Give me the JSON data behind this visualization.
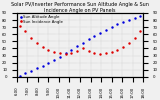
{
  "title": "Solar PV/Inverter Performance Sun Altitude Angle & Sun Incidence Angle on PV Panels",
  "background_color": "#f0f0f0",
  "grid_color": "#aaaaaa",
  "ylim_left": [
    0,
    90
  ],
  "ylim_right": [
    0,
    90
  ],
  "xlim": [
    0,
    22
  ],
  "series_blue": {
    "name": "Sun Altitude Angle",
    "color": "#0000dd",
    "x": [
      0.5,
      1.5,
      2.5,
      3.5,
      4.5,
      5.5,
      6.5,
      7.5,
      8.5,
      9.5,
      10.5,
      11.5,
      12.5,
      13.5,
      14.5,
      15.5,
      16.5,
      17.5,
      18.5,
      19.5,
      20.5,
      21.5
    ],
    "y": [
      2,
      5,
      8,
      12,
      16,
      20,
      24,
      28,
      33,
      38,
      43,
      48,
      53,
      57,
      62,
      66,
      70,
      74,
      77,
      80,
      83,
      86
    ]
  },
  "series_red": {
    "name": "Sun Incidence Angle",
    "color": "#dd0000",
    "x": [
      0.5,
      1.5,
      2.5,
      3.5,
      4.5,
      5.5,
      6.5,
      7.5,
      8.5,
      9.5,
      10.5,
      11.5,
      12.5,
      13.5,
      14.5,
      15.5,
      16.5,
      17.5,
      18.5,
      19.5,
      20.5,
      21.5
    ],
    "y": [
      72,
      65,
      55,
      48,
      42,
      38,
      35,
      33,
      32,
      34,
      37,
      40,
      37,
      34,
      32,
      33,
      35,
      38,
      42,
      48,
      55,
      65
    ]
  },
  "xtick_positions": [
    0,
    1.83,
    3.67,
    5.5,
    7.33,
    9.17,
    11.0,
    12.83,
    14.67,
    16.5,
    18.33,
    20.17,
    22
  ],
  "xtick_labels": [
    "6:00",
    "7:00",
    "8:00",
    "9:00",
    "10:00",
    "11:00",
    "12:00",
    "13:00",
    "14:00",
    "15:00",
    "16:00",
    "17:00",
    "18:00"
  ],
  "ytick_left": [
    0,
    10,
    20,
    30,
    40,
    50,
    60,
    70,
    80,
    90
  ],
  "ytick_right": [
    0,
    10,
    20,
    30,
    40,
    50,
    60,
    70,
    80,
    90
  ],
  "title_fontsize": 3.5,
  "tick_fontsize": 2.8,
  "legend_fontsize": 2.8,
  "markersize": 1.5
}
